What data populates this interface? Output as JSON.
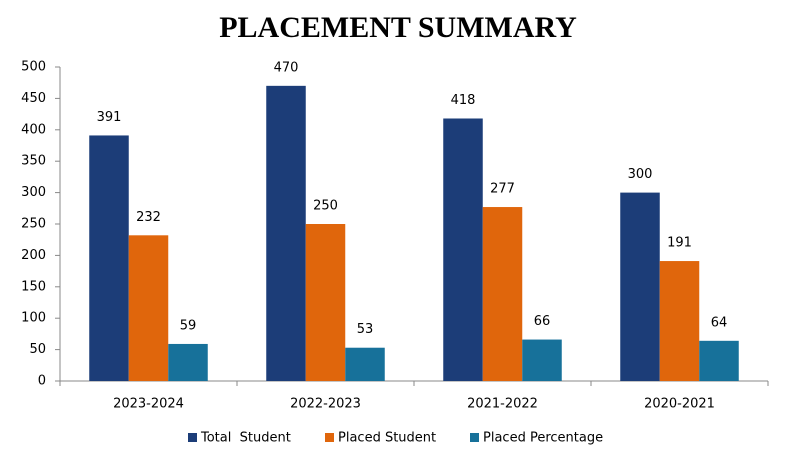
{
  "chart_data": {
    "type": "bar",
    "title": "PLACEMENT SUMMARY",
    "categories": [
      "2023-2024",
      "2022-2023",
      "2021-2022",
      "2020-2021"
    ],
    "series": [
      {
        "name": "Total  Student",
        "color": "#1c3d78",
        "values": [
          391,
          470,
          418,
          300
        ]
      },
      {
        "name": "Placed Student",
        "color": "#e0660c",
        "values": [
          232,
          250,
          277,
          191
        ]
      },
      {
        "name": "Placed Percentage",
        "color": "#17719a",
        "values": [
          59,
          53,
          66,
          64
        ]
      }
    ],
    "ylim": [
      0,
      500
    ],
    "yticks": [
      0,
      50,
      100,
      150,
      200,
      250,
      300,
      350,
      400,
      450,
      500
    ],
    "grid": false,
    "legend": "bottom"
  }
}
